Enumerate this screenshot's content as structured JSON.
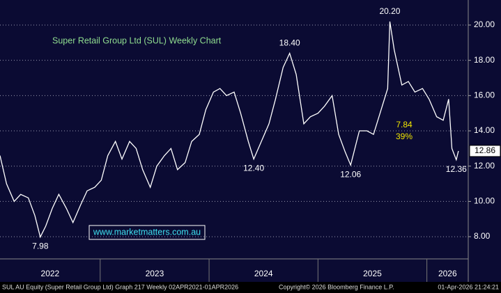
{
  "chart_data": {
    "type": "line",
    "title": "Super Retail Group Ltd (SUL) Weekly Chart",
    "watermark": "www.marketmatters.com.au",
    "footer_left": "SUL AU Equity (Super Retail Group Ltd) Graph 217 Weekly 02APR2021-01APR2026",
    "footer_center": "Copyright© 2026 Bloomberg Finance L.P.",
    "footer_right": "01-Apr-2026 21:24:21",
    "annotations": [
      "7.84",
      "39%"
    ],
    "annotation_color": "#f2e600",
    "title_color": "#8fdc8f",
    "last_price": 12.86,
    "x": [
      2022.08,
      2022.14,
      2022.21,
      2022.27,
      2022.34,
      2022.4,
      2022.45,
      2022.5,
      2022.56,
      2022.62,
      2022.69,
      2022.75,
      2022.82,
      2022.88,
      2022.95,
      2023.01,
      2023.07,
      2023.14,
      2023.2,
      2023.27,
      2023.33,
      2023.39,
      2023.46,
      2023.52,
      2023.59,
      2023.65,
      2023.71,
      2023.78,
      2023.84,
      2023.91,
      2023.97,
      2024.04,
      2024.1,
      2024.16,
      2024.23,
      2024.29,
      2024.36,
      2024.41,
      2024.48,
      2024.55,
      2024.61,
      2024.68,
      2024.74,
      2024.8,
      2024.87,
      2024.93,
      2025.0,
      2025.06,
      2025.13,
      2025.19,
      2025.25,
      2025.3,
      2025.38,
      2025.45,
      2025.51,
      2025.57,
      2025.64,
      2025.66,
      2025.7,
      2025.77,
      2025.83,
      2025.89,
      2025.96,
      2026.02,
      2026.09,
      2026.15,
      2026.2,
      2026.23,
      2026.27,
      2026.29
    ],
    "series": [
      {
        "name": "SUL AU Equity",
        "color": "#ffffff",
        "values": [
          12.6,
          11.0,
          10.0,
          10.4,
          10.2,
          9.2,
          7.98,
          8.6,
          9.6,
          10.4,
          9.6,
          8.8,
          9.8,
          10.6,
          10.8,
          11.2,
          12.6,
          13.4,
          12.4,
          13.4,
          13.0,
          11.8,
          10.8,
          12.0,
          12.6,
          13.0,
          11.8,
          12.2,
          13.4,
          13.8,
          15.2,
          16.2,
          16.4,
          16.0,
          16.2,
          15.0,
          13.4,
          12.4,
          13.4,
          14.4,
          15.8,
          17.6,
          18.4,
          17.2,
          14.4,
          14.8,
          15.0,
          15.4,
          16.0,
          13.8,
          12.8,
          12.06,
          14.0,
          14.0,
          13.8,
          15.0,
          16.4,
          20.2,
          18.6,
          16.6,
          16.8,
          16.2,
          16.4,
          15.8,
          14.8,
          14.6,
          15.8,
          13.0,
          12.36,
          12.86
        ],
        "value_labels": [
          null,
          null,
          null,
          null,
          null,
          null,
          "7.98",
          null,
          null,
          null,
          null,
          null,
          null,
          null,
          null,
          null,
          null,
          null,
          null,
          null,
          null,
          null,
          null,
          null,
          null,
          null,
          null,
          null,
          null,
          null,
          null,
          null,
          null,
          null,
          null,
          null,
          null,
          "12.40",
          null,
          null,
          null,
          null,
          "18.40",
          null,
          null,
          null,
          null,
          null,
          null,
          null,
          null,
          "12.06",
          null,
          null,
          null,
          null,
          null,
          "20.20",
          null,
          null,
          null,
          null,
          null,
          null,
          null,
          null,
          null,
          null,
          "12.36",
          null
        ]
      }
    ],
    "xlim": [
      2022.08,
      2026.38
    ],
    "xticks": [
      2022,
      2023,
      2024,
      2025,
      2026
    ],
    "ylim": [
      6.74,
      21.42
    ],
    "yticks": [
      {
        "value": 8,
        "label": "8.00"
      },
      {
        "value": 10,
        "label": "10.00"
      },
      {
        "value": 12,
        "label": "12.00"
      },
      {
        "value": 14,
        "label": "14.00"
      },
      {
        "value": 16,
        "label": "16.00"
      },
      {
        "value": 18,
        "label": "18.00"
      },
      {
        "value": 20,
        "label": "20.00"
      }
    ],
    "grid": true
  }
}
